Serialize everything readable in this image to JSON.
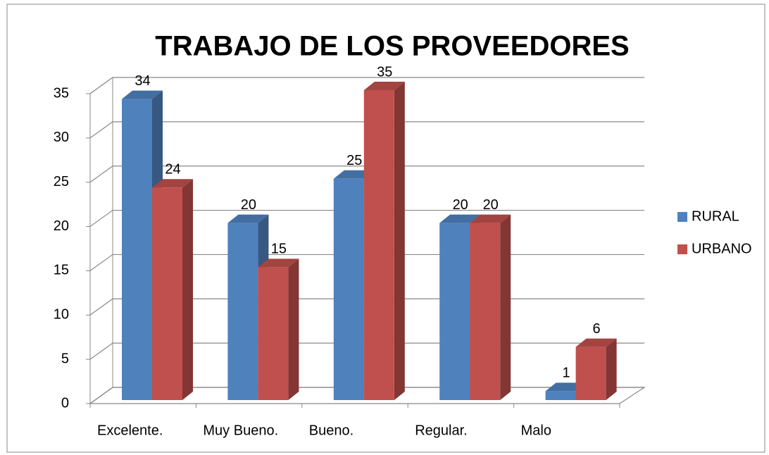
{
  "chart_data": {
    "type": "bar3d",
    "title": "TRABAJO DE LOS PROVEEDORES",
    "categories": [
      "Excelente.",
      "Muy Bueno.",
      "Bueno.",
      "Regular.",
      "Malo"
    ],
    "series": [
      {
        "name": "RURAL",
        "color": "#4f81bd",
        "values": [
          34,
          20,
          25,
          20,
          1
        ]
      },
      {
        "name": "URBANO",
        "color": "#c0504d",
        "values": [
          24,
          15,
          35,
          20,
          6
        ]
      }
    ],
    "ylim": [
      0,
      35
    ],
    "yticks": [
      0,
      5,
      10,
      15,
      20,
      25,
      30,
      35
    ],
    "grid": true,
    "legend": "right"
  }
}
